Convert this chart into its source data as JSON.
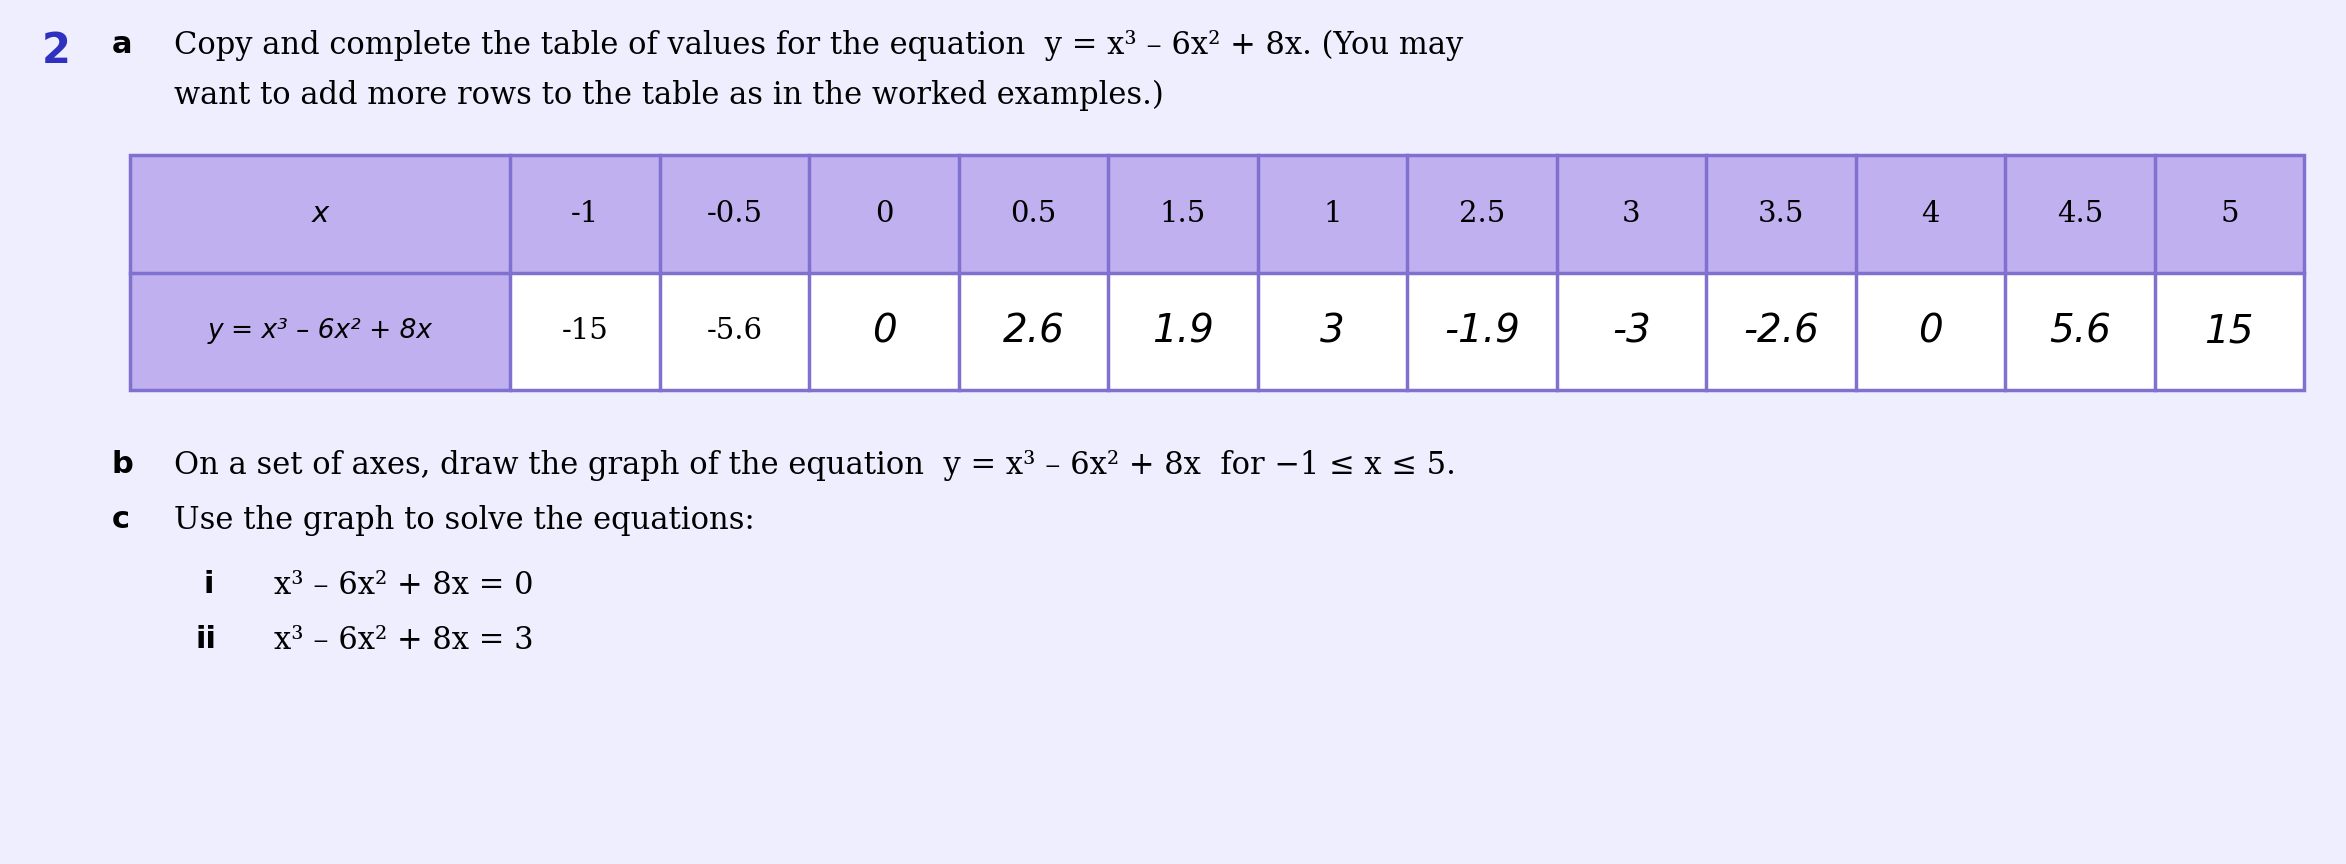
{
  "number": "2",
  "number_color": "#3030c0",
  "letter_a": "a",
  "letter_b": "b",
  "letter_c": "c",
  "text_a1": "Copy and complete the table of values for the equation  y = x³ – 6x² + 8x. (You may",
  "text_a2": "want to add more rows to the table as in the worked examples.)",
  "text_b": "On a set of axes, draw the graph of the equation  y = x³ – 6x² + 8x  for −1 ≤ x ≤ 5.",
  "text_c": "Use the graph to solve the equations:",
  "text_i_label": "i",
  "text_ii_label": "ii",
  "text_i": "x³ – 6x² + 8x = 0",
  "text_ii": "x³ – 6x² + 8x = 3",
  "x_values": [
    "-1",
    "-0.5",
    "0",
    "0.5",
    "1.5",
    "1",
    "2.5",
    "3",
    "3.5",
    "4",
    "4.5",
    "5"
  ],
  "y_values_typed": [
    "-15",
    "-5.6"
  ],
  "y_values_hw": [
    "0",
    "2.6",
    "1.9",
    "3",
    "-1.9",
    "-3",
    "-2.6",
    "0",
    "5.6",
    "15"
  ],
  "header_label": "x",
  "row_label": "y = x³ – 6x² + 8x",
  "table_purple_bg": "#c0b0f0",
  "table_border_color": "#8070d0",
  "table_cell_bg": "#ffffff",
  "background_color": "#eeeeff",
  "text_color": "#000000",
  "fs_title": 24,
  "fs_body": 22,
  "fs_table_header": 21,
  "fs_table_data": 21,
  "fs_table_hw": 28,
  "fs_number": 30
}
